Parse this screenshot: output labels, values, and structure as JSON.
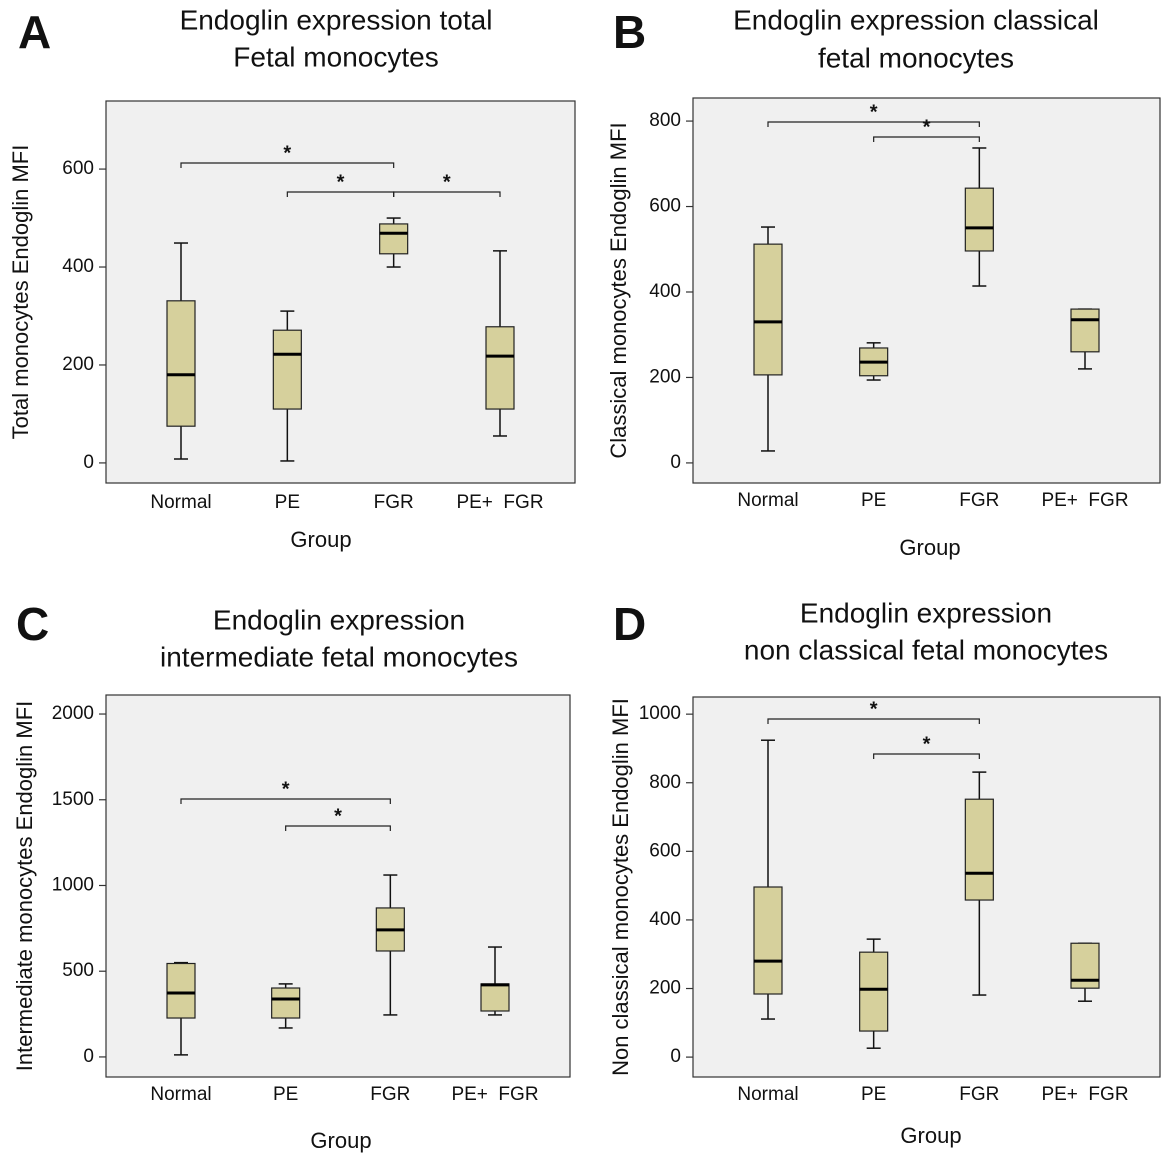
{
  "chart_data": [
    {
      "type": "box",
      "panel": "A",
      "title": [
        "Endoglin expression total",
        "Fetal monocytes"
      ],
      "xlabel": "Group",
      "ylabel": "Total monocytes Endoglin MFI",
      "categories": [
        "Normal",
        "PE",
        "FGR",
        "PE+  FGR"
      ],
      "boxes": [
        {
          "min": 8,
          "q1": 75,
          "median": 180,
          "q3": 331,
          "max": 449
        },
        {
          "min": 4,
          "q1": 110,
          "median": 222,
          "q3": 271,
          "max": 310
        },
        {
          "min": 400,
          "q1": 427,
          "median": 469,
          "q3": 488,
          "max": 500
        },
        {
          "min": 55,
          "q1": 110,
          "median": 218,
          "q3": 278,
          "max": 433
        }
      ],
      "ylim": [
        -41,
        739
      ],
      "yticks": [
        0,
        200,
        400,
        600
      ],
      "color": "#d6d09c",
      "background": "#f0f0f0",
      "significance": [
        [
          {
            "between": [
              "Normal",
              "FGR"
            ],
            "label": "*"
          }
        ],
        [
          {
            "between": [
              "PE",
              "FGR"
            ],
            "label": "*"
          },
          {
            "between": [
              "FGR",
              "PE+  FGR"
            ],
            "label": "*"
          }
        ]
      ]
    },
    {
      "type": "box",
      "panel": "B",
      "title": [
        "Endoglin expression classical",
        "fetal monocytes"
      ],
      "xlabel": "Group",
      "ylabel": "Classical monocytes Endoglin MFI",
      "categories": [
        "Normal",
        "PE",
        "FGR",
        "PE+  FGR"
      ],
      "boxes": [
        {
          "min": 28,
          "q1": 206,
          "median": 330,
          "q3": 512,
          "max": 552
        },
        {
          "min": 194,
          "q1": 204,
          "median": 236,
          "q3": 269,
          "max": 281
        },
        {
          "min": 414,
          "q1": 496,
          "median": 550,
          "q3": 643,
          "max": 737
        },
        {
          "min": 220,
          "q1": 260,
          "median": 335,
          "q3": 360,
          "max": 360
        }
      ],
      "ylim": [
        -47,
        854
      ],
      "yticks": [
        0,
        200,
        400,
        600,
        800
      ],
      "color": "#d6d09c",
      "background": "#f0f0f0",
      "significance": [
        [
          {
            "between": [
              "Normal",
              "FGR"
            ],
            "label": "*"
          }
        ],
        [
          {
            "between": [
              "PE",
              "FGR"
            ],
            "label": "*"
          }
        ]
      ]
    },
    {
      "type": "box",
      "panel": "C",
      "title": [
        "Endoglin expression",
        "intermediate fetal monocytes"
      ],
      "xlabel": "Group",
      "ylabel": "Intermediate monocytes Endoglin MFI",
      "categories": [
        "Normal",
        "PE",
        "FGR",
        "PE+  FGR"
      ],
      "boxes": [
        {
          "min": 12,
          "q1": 227,
          "median": 373,
          "q3": 545,
          "max": 550
        },
        {
          "min": 169,
          "q1": 227,
          "median": 338,
          "q3": 402,
          "max": 426
        },
        {
          "min": 245,
          "q1": 618,
          "median": 741,
          "q3": 869,
          "max": 1061
        },
        {
          "min": 245,
          "q1": 268,
          "median": 420,
          "q3": 426,
          "max": 641
        }
      ],
      "ylim": [
        -117,
        2111
      ],
      "yticks": [
        0,
        500,
        1000,
        1500,
        2000
      ],
      "color": "#d6d09c",
      "background": "#f0f0f0",
      "significance": [
        [
          {
            "between": [
              "Normal",
              "FGR"
            ],
            "label": "*"
          }
        ],
        [
          {
            "between": [
              "PE",
              "FGR"
            ],
            "label": "*"
          }
        ]
      ]
    },
    {
      "type": "box",
      "panel": "D",
      "title": [
        "Endoglin expression",
        "non classical fetal monocytes"
      ],
      "xlabel": "Group",
      "ylabel": "Non classical monocytes Endoglin MFI",
      "categories": [
        "Normal",
        "PE",
        "FGR",
        "PE+  FGR"
      ],
      "boxes": [
        {
          "min": 111,
          "q1": 184,
          "median": 280,
          "q3": 496,
          "max": 924
        },
        {
          "min": 26,
          "q1": 76,
          "median": 198,
          "q3": 306,
          "max": 344
        },
        {
          "min": 181,
          "q1": 458,
          "median": 536,
          "q3": 752,
          "max": 831
        },
        {
          "min": 163,
          "q1": 201,
          "median": 224,
          "q3": 332,
          "max": 332
        }
      ],
      "ylim": [
        -58,
        1050
      ],
      "yticks": [
        0,
        200,
        400,
        600,
        800,
        1000
      ],
      "color": "#d6d09c",
      "background": "#f0f0f0",
      "significance": [
        [
          {
            "between": [
              "Normal",
              "FGR"
            ],
            "label": "*"
          }
        ],
        [
          {
            "between": [
              "PE",
              "FGR"
            ],
            "label": "*"
          }
        ]
      ]
    }
  ]
}
